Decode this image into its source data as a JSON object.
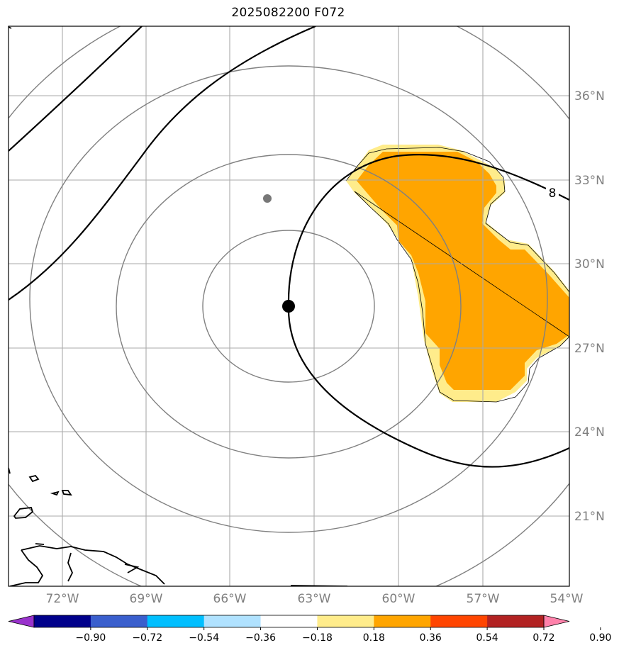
{
  "title": "2025082200 F072",
  "longitude_labels": [
    "72°W",
    "69°W",
    "66°W",
    "63°W",
    "60°W",
    "57°W",
    "54°W"
  ],
  "latitude_labels": [
    "36°N",
    "33°N",
    "30°N",
    "27°N",
    "24°N",
    "21°N"
  ],
  "contour_label": "8",
  "colorbar": {
    "ticks": [
      "−0.90",
      "−0.72",
      "−0.54",
      "−0.36",
      "−0.18",
      "0.18",
      "0.36",
      "0.54",
      "0.72",
      "0.90"
    ],
    "colors": [
      "#9932cc",
      "#00008b",
      "#3a5fcd",
      "#00bfff",
      "#b0e2ff",
      "#ffffff",
      "#ffec8b",
      "#ffa500",
      "#ff4500",
      "#b22222",
      "#ff82ab"
    ]
  },
  "colors": {
    "range_rings": "#808080",
    "gridlines": "#aaaaaa",
    "contour": "#000000",
    "fill_light": "#ffec8b",
    "fill_dark": "#ffa500",
    "storm_center": "#000000",
    "secondary_point": "#777777"
  }
}
